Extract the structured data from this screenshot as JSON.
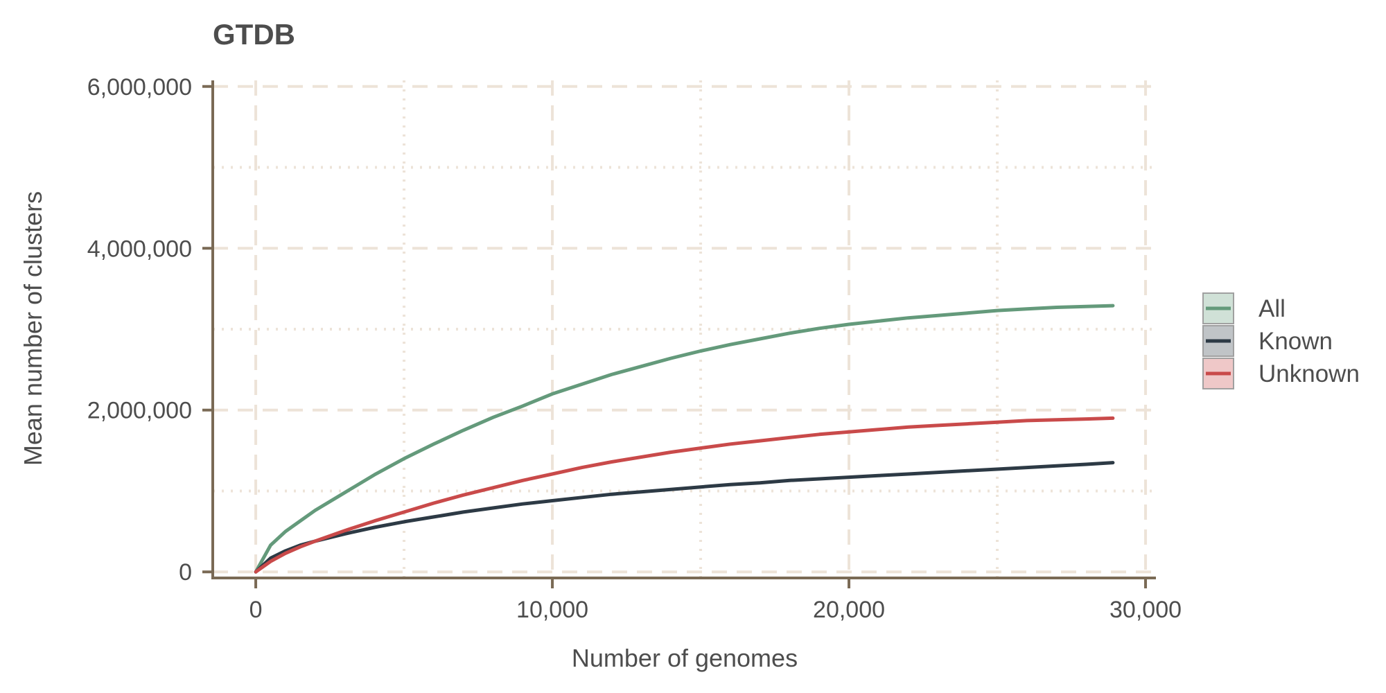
{
  "chart_data": {
    "type": "line",
    "title": "GTDB",
    "xlabel": "Number of genomes",
    "ylabel": "Mean number of clusters",
    "xlim": [
      -1450,
      30350
    ],
    "ylim": [
      -75000,
      6075000
    ],
    "x_ticks": [
      0,
      10000,
      20000,
      30000
    ],
    "x_tick_labels": [
      "0",
      "10,000",
      "20,000",
      "30,000"
    ],
    "y_ticks": [
      0,
      2000000,
      4000000,
      6000000
    ],
    "y_tick_labels": [
      "0",
      "2,000,000",
      "4,000,000",
      "6,000,000"
    ],
    "x_minor_ticks": [
      5000,
      15000,
      25000
    ],
    "y_minor_ticks": [
      1000000,
      3000000,
      5000000
    ],
    "grid": true,
    "legend_position": "right",
    "colors": {
      "axis": "#7a6a55",
      "grid": "#ede3d8",
      "legend_key_border": "#a0a0a0"
    },
    "x": [
      0,
      500,
      1000,
      1500,
      2000,
      3000,
      4000,
      5000,
      6000,
      7000,
      8000,
      9000,
      10000,
      11000,
      12000,
      13000,
      14000,
      15000,
      16000,
      17000,
      18000,
      19000,
      20000,
      21000,
      22000,
      23000,
      24000,
      25000,
      26000,
      27000,
      28000,
      28900
    ],
    "series": [
      {
        "name": "All",
        "color": "#649a7b",
        "values": [
          0,
          330000,
          500000,
          630000,
          760000,
          980000,
          1200000,
          1400000,
          1580000,
          1750000,
          1910000,
          2050000,
          2200000,
          2320000,
          2440000,
          2540000,
          2640000,
          2730000,
          2810000,
          2880000,
          2950000,
          3010000,
          3060000,
          3100000,
          3140000,
          3170000,
          3200000,
          3230000,
          3250000,
          3270000,
          3280000,
          3290000
        ]
      },
      {
        "name": "Known",
        "color": "#2d3a45",
        "values": [
          0,
          170000,
          260000,
          330000,
          380000,
          470000,
          550000,
          620000,
          680000,
          740000,
          790000,
          840000,
          880000,
          920000,
          960000,
          990000,
          1020000,
          1050000,
          1080000,
          1100000,
          1130000,
          1150000,
          1170000,
          1190000,
          1210000,
          1230000,
          1250000,
          1270000,
          1290000,
          1310000,
          1330000,
          1350000
        ]
      },
      {
        "name": "Unknown",
        "color": "#c94a4a",
        "values": [
          0,
          130000,
          230000,
          310000,
          380000,
          510000,
          630000,
          740000,
          850000,
          950000,
          1040000,
          1130000,
          1210000,
          1290000,
          1360000,
          1420000,
          1480000,
          1530000,
          1580000,
          1620000,
          1660000,
          1700000,
          1730000,
          1760000,
          1790000,
          1810000,
          1830000,
          1850000,
          1870000,
          1880000,
          1890000,
          1900000
        ]
      }
    ]
  }
}
